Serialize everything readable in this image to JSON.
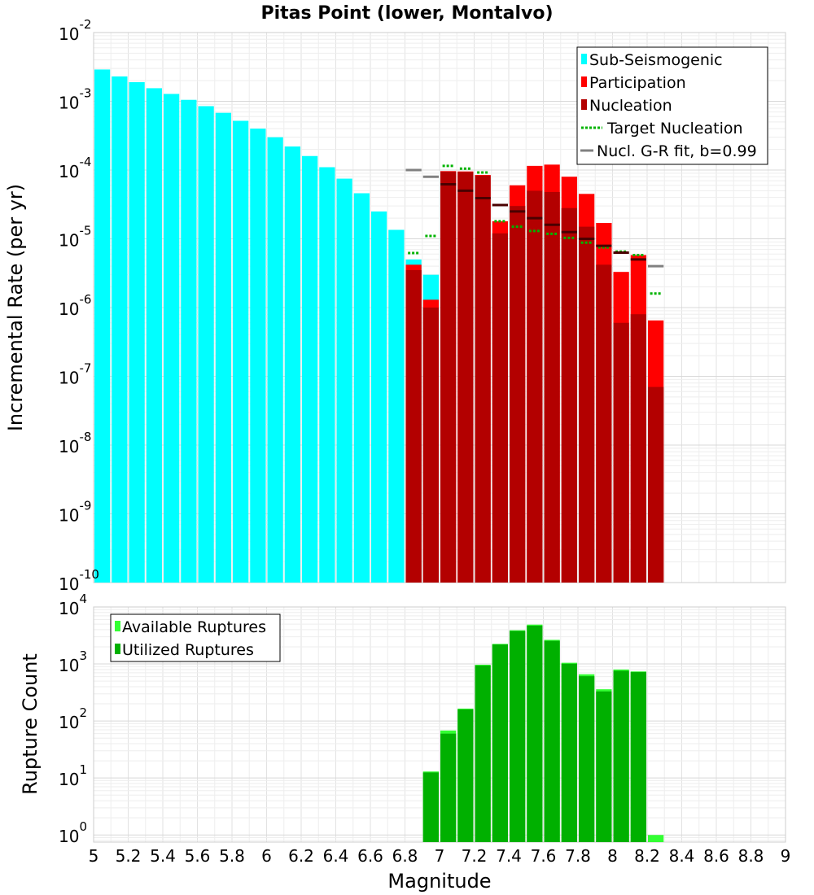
{
  "chart_data": [
    {
      "type": "bar",
      "title": "Pitas Point (lower, Montalvo)",
      "xlabel": "",
      "ylabel": "Incremental Rate (per yr)",
      "yscale": "log",
      "xlim": [
        5,
        9
      ],
      "ylim": [
        1e-10,
        0.01
      ],
      "y_tick_labels": [
        {
          "base": "10",
          "exp": "-10"
        },
        {
          "base": "10",
          "exp": "-9"
        },
        {
          "base": "10",
          "exp": "-8"
        },
        {
          "base": "10",
          "exp": "-7"
        },
        {
          "base": "10",
          "exp": "-6"
        },
        {
          "base": "10",
          "exp": "-5"
        },
        {
          "base": "10",
          "exp": "-4"
        },
        {
          "base": "10",
          "exp": "-3"
        },
        {
          "base": "10",
          "exp": "-2"
        }
      ],
      "grid": true,
      "legend_placement": "top-right",
      "bin_width": 0.1,
      "series": [
        {
          "name": "Sub-Seismogenic",
          "color": "#00ffff",
          "x": [
            5.05,
            5.15,
            5.25,
            5.35,
            5.45,
            5.55,
            5.65,
            5.75,
            5.85,
            5.95,
            6.05,
            6.15,
            6.25,
            6.35,
            6.45,
            6.55,
            6.65,
            6.75,
            6.85,
            6.95
          ],
          "values": [
            0.0029,
            0.0023,
            0.0019,
            0.00155,
            0.00128,
            0.00105,
            0.00085,
            0.00068,
            0.00052,
            0.0004,
            0.0003,
            0.00022,
            0.00016,
            0.00011,
            7.5e-05,
            4.6e-05,
            2.5e-05,
            1.35e-05,
            5e-06,
            3e-06
          ]
        },
        {
          "name": "Participation",
          "color": "#ff0000",
          "x": [
            6.85,
            6.95,
            7.05,
            7.15,
            7.25,
            7.35,
            7.45,
            7.55,
            7.65,
            7.75,
            7.85,
            7.95,
            8.05,
            8.15,
            8.25
          ],
          "values": [
            4.2e-06,
            1.3e-06,
            9.65e-05,
            9.55e-05,
            8.5e-05,
            1.8e-05,
            6e-05,
            0.000115,
            0.00012,
            8e-05,
            4.5e-05,
            1.7e-05,
            3.3e-06,
            5.8e-06,
            6.5e-07
          ]
        },
        {
          "name": "Nucleation",
          "color": "#b30000",
          "x": [
            6.85,
            6.95,
            7.05,
            7.15,
            7.25,
            7.35,
            7.45,
            7.55,
            7.65,
            7.75,
            7.85,
            7.95,
            8.05,
            8.15,
            8.25
          ],
          "values": [
            3.5e-06,
            1e-06,
            9.5e-05,
            9.4e-05,
            8.3e-05,
            1.2e-05,
            3e-05,
            5e-05,
            4.8e-05,
            2.8e-05,
            1.5e-05,
            4.2e-06,
            6e-07,
            8e-07,
            7e-08
          ]
        },
        {
          "name": "Target Nucleation",
          "color": "#00b300",
          "style": "dotted",
          "x": [
            6.85,
            6.95,
            7.05,
            7.15,
            7.25,
            7.35,
            7.45,
            7.55,
            7.65,
            7.75,
            7.85,
            7.95,
            8.05,
            8.15,
            8.25
          ],
          "values": [
            6.2e-06,
            1.1e-05,
            0.000115,
            0.000105,
            9.2e-05,
            1.8e-05,
            1.5e-05,
            1.3e-05,
            1.18e-05,
            1.03e-05,
            8.8e-06,
            7.5e-06,
            6.5e-06,
            5.8e-06,
            1.6e-06
          ]
        },
        {
          "name": "Nucl. G-R fit, b=0.99",
          "color": "#808080",
          "style": "segment",
          "x": [
            6.85,
            6.95,
            7.05,
            7.15,
            7.25,
            7.35,
            7.45,
            7.55,
            7.65,
            7.75,
            7.85,
            7.95,
            8.05,
            8.15,
            8.25
          ],
          "values": [
            0.0001,
            8e-05,
            6.2e-05,
            5e-05,
            3.9e-05,
            3.1e-05,
            2.5e-05,
            2e-05,
            1.6e-05,
            1.25e-05,
            1e-05,
            7.9e-06,
            6.3e-06,
            5e-06,
            4e-06
          ]
        }
      ]
    },
    {
      "type": "bar",
      "title": "",
      "xlabel": "Magnitude",
      "ylabel": "Rupture Count",
      "yscale": "log",
      "xlim": [
        5,
        9
      ],
      "ylim": [
        0.75,
        10000
      ],
      "x_tick_labels": [
        "5",
        "5.2",
        "5.4",
        "5.6",
        "5.8",
        "6",
        "6.2",
        "6.4",
        "6.6",
        "6.8",
        "7",
        "7.2",
        "7.4",
        "7.6",
        "7.8",
        "8",
        "8.2",
        "8.4",
        "8.6",
        "8.8",
        "9"
      ],
      "y_tick_labels": [
        {
          "base": "10",
          "exp": "0"
        },
        {
          "base": "10",
          "exp": "1"
        },
        {
          "base": "10",
          "exp": "2"
        },
        {
          "base": "10",
          "exp": "3"
        },
        {
          "base": "10",
          "exp": "4"
        }
      ],
      "grid": true,
      "legend_placement": "top-left",
      "bin_width": 0.1,
      "series": [
        {
          "name": "Available Ruptures",
          "color": "#33ff33",
          "x": [
            6.95,
            7.05,
            7.15,
            7.25,
            7.35,
            7.45,
            7.55,
            7.65,
            7.75,
            7.85,
            7.95,
            8.05,
            8.15,
            8.25
          ],
          "values": [
            13,
            68,
            165,
            970,
            2250,
            3900,
            4900,
            2650,
            1050,
            660,
            360,
            800,
            740,
            1
          ]
        },
        {
          "name": "Utilized Ruptures",
          "color": "#00b000",
          "x": [
            6.95,
            7.05,
            7.15,
            7.25,
            7.35,
            7.45,
            7.55,
            7.65,
            7.75,
            7.85,
            7.95,
            8.05,
            8.15,
            8.25
          ],
          "values": [
            12.5,
            60,
            160,
            940,
            2200,
            3800,
            4700,
            2550,
            1010,
            610,
            330,
            760,
            720,
            0
          ]
        }
      ]
    }
  ]
}
